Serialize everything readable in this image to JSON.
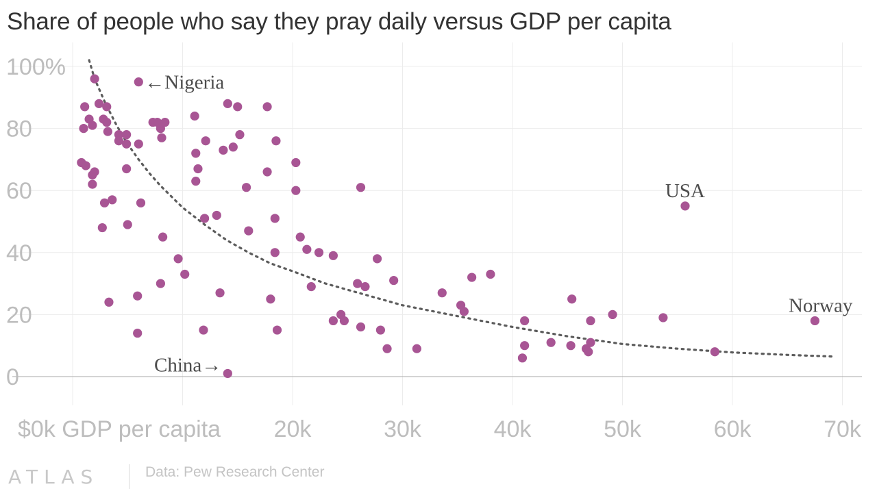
{
  "title": "Share of people who say they pray daily versus GDP per capita",
  "source": "Data: Pew Research Center",
  "brand": "ATLAS",
  "colors": {
    "point": "#a85594",
    "trend": "#5c5c5c",
    "grid": "#ececec",
    "axis_text": "#bdbdbd",
    "zero_line": "#aaaaaa",
    "annotation": "#4d4d4d"
  },
  "chart_data": {
    "type": "scatter",
    "xlim": [
      0,
      70000
    ],
    "ylim": [
      0,
      100
    ],
    "grid": true,
    "x_ticks": [
      {
        "value": 0,
        "label": "$0k GDP per capita"
      },
      {
        "value": 20000,
        "label": "20k"
      },
      {
        "value": 30000,
        "label": "30k"
      },
      {
        "value": 40000,
        "label": "40k"
      },
      {
        "value": 50000,
        "label": "50k"
      },
      {
        "value": 60000,
        "label": "60k"
      },
      {
        "value": 70000,
        "label": "70k"
      }
    ],
    "y_ticks": [
      {
        "value": 0,
        "label": "0"
      },
      {
        "value": 20,
        "label": "20"
      },
      {
        "value": 40,
        "label": "40"
      },
      {
        "value": 60,
        "label": "60"
      },
      {
        "value": 80,
        "label": "80"
      },
      {
        "value": 100,
        "label": "100%"
      }
    ],
    "points": [
      {
        "x": 800,
        "y": 69
      },
      {
        "x": 1200,
        "y": 68
      },
      {
        "x": 1000,
        "y": 80
      },
      {
        "x": 1100,
        "y": 87
      },
      {
        "x": 1500,
        "y": 83
      },
      {
        "x": 1800,
        "y": 81
      },
      {
        "x": 2000,
        "y": 96
      },
      {
        "x": 1800,
        "y": 65
      },
      {
        "x": 2000,
        "y": 66
      },
      {
        "x": 1800,
        "y": 62
      },
      {
        "x": 2400,
        "y": 88
      },
      {
        "x": 2800,
        "y": 83
      },
      {
        "x": 3100,
        "y": 87
      },
      {
        "x": 3100,
        "y": 82
      },
      {
        "x": 3200,
        "y": 79
      },
      {
        "x": 2900,
        "y": 56
      },
      {
        "x": 2700,
        "y": 48
      },
      {
        "x": 3600,
        "y": 57
      },
      {
        "x": 3300,
        "y": 24
      },
      {
        "x": 4200,
        "y": 78
      },
      {
        "x": 4200,
        "y": 76
      },
      {
        "x": 4900,
        "y": 78
      },
      {
        "x": 4900,
        "y": 75
      },
      {
        "x": 4900,
        "y": 67
      },
      {
        "x": 5000,
        "y": 49
      },
      {
        "x": 6000,
        "y": 95,
        "label": "←Nigeria"
      },
      {
        "x": 6000,
        "y": 75
      },
      {
        "x": 6200,
        "y": 56
      },
      {
        "x": 5900,
        "y": 26
      },
      {
        "x": 5900,
        "y": 14
      },
      {
        "x": 7300,
        "y": 82
      },
      {
        "x": 7700,
        "y": 82
      },
      {
        "x": 8000,
        "y": 80
      },
      {
        "x": 8400,
        "y": 82
      },
      {
        "x": 8100,
        "y": 77
      },
      {
        "x": 8200,
        "y": 45
      },
      {
        "x": 8000,
        "y": 30
      },
      {
        "x": 9600,
        "y": 38
      },
      {
        "x": 10200,
        "y": 33
      },
      {
        "x": 11100,
        "y": 84
      },
      {
        "x": 11200,
        "y": 72
      },
      {
        "x": 11400,
        "y": 67
      },
      {
        "x": 11200,
        "y": 63
      },
      {
        "x": 12100,
        "y": 76
      },
      {
        "x": 12000,
        "y": 51
      },
      {
        "x": 11900,
        "y": 15
      },
      {
        "x": 13100,
        "y": 52
      },
      {
        "x": 13400,
        "y": 27
      },
      {
        "x": 13700,
        "y": 73
      },
      {
        "x": 14100,
        "y": 88
      },
      {
        "x": 14600,
        "y": 74
      },
      {
        "x": 15000,
        "y": 87
      },
      {
        "x": 15200,
        "y": 78
      },
      {
        "x": 15800,
        "y": 61
      },
      {
        "x": 16000,
        "y": 47
      },
      {
        "x": 14100,
        "y": 1,
        "label": "China→"
      },
      {
        "x": 17700,
        "y": 87
      },
      {
        "x": 17700,
        "y": 66
      },
      {
        "x": 18000,
        "y": 25
      },
      {
        "x": 18500,
        "y": 76
      },
      {
        "x": 18400,
        "y": 51
      },
      {
        "x": 18400,
        "y": 40
      },
      {
        "x": 18600,
        "y": 15
      },
      {
        "x": 20300,
        "y": 69
      },
      {
        "x": 20300,
        "y": 60
      },
      {
        "x": 20700,
        "y": 45
      },
      {
        "x": 21300,
        "y": 41
      },
      {
        "x": 21700,
        "y": 29
      },
      {
        "x": 22400,
        "y": 40
      },
      {
        "x": 23700,
        "y": 39
      },
      {
        "x": 23700,
        "y": 18
      },
      {
        "x": 24400,
        "y": 20
      },
      {
        "x": 24700,
        "y": 18
      },
      {
        "x": 25900,
        "y": 30
      },
      {
        "x": 26200,
        "y": 16
      },
      {
        "x": 26200,
        "y": 61
      },
      {
        "x": 26600,
        "y": 29
      },
      {
        "x": 27700,
        "y": 38
      },
      {
        "x": 28000,
        "y": 15
      },
      {
        "x": 28600,
        "y": 9
      },
      {
        "x": 29200,
        "y": 31
      },
      {
        "x": 31300,
        "y": 9
      },
      {
        "x": 33600,
        "y": 27
      },
      {
        "x": 35300,
        "y": 23
      },
      {
        "x": 35600,
        "y": 21
      },
      {
        "x": 36300,
        "y": 32
      },
      {
        "x": 38000,
        "y": 33
      },
      {
        "x": 40900,
        "y": 6
      },
      {
        "x": 41100,
        "y": 18
      },
      {
        "x": 41100,
        "y": 10
      },
      {
        "x": 43500,
        "y": 11
      },
      {
        "x": 45300,
        "y": 10
      },
      {
        "x": 45400,
        "y": 25
      },
      {
        "x": 46700,
        "y": 9
      },
      {
        "x": 46900,
        "y": 8
      },
      {
        "x": 47100,
        "y": 18
      },
      {
        "x": 47100,
        "y": 11
      },
      {
        "x": 49100,
        "y": 20
      },
      {
        "x": 53700,
        "y": 19
      },
      {
        "x": 55700,
        "y": 55,
        "label": "USA"
      },
      {
        "x": 58400,
        "y": 8
      },
      {
        "x": 67500,
        "y": 18,
        "label": "Norway"
      }
    ],
    "trend": [
      {
        "x": 1500,
        "y": 102
      },
      {
        "x": 2000,
        "y": 96
      },
      {
        "x": 3000,
        "y": 88
      },
      {
        "x": 4000,
        "y": 81
      },
      {
        "x": 5000,
        "y": 75
      },
      {
        "x": 6000,
        "y": 70
      },
      {
        "x": 7000,
        "y": 65.5
      },
      {
        "x": 8000,
        "y": 61.5
      },
      {
        "x": 10000,
        "y": 54.5
      },
      {
        "x": 12000,
        "y": 49
      },
      {
        "x": 14000,
        "y": 44
      },
      {
        "x": 16000,
        "y": 40
      },
      {
        "x": 18000,
        "y": 36.5
      },
      {
        "x": 20000,
        "y": 34
      },
      {
        "x": 23000,
        "y": 30
      },
      {
        "x": 26000,
        "y": 27
      },
      {
        "x": 30000,
        "y": 23
      },
      {
        "x": 35000,
        "y": 19.5
      },
      {
        "x": 40000,
        "y": 16
      },
      {
        "x": 45000,
        "y": 13
      },
      {
        "x": 50000,
        "y": 10.5
      },
      {
        "x": 55000,
        "y": 9
      },
      {
        "x": 60000,
        "y": 7.8
      },
      {
        "x": 65000,
        "y": 7
      },
      {
        "x": 69000,
        "y": 6.5
      }
    ]
  }
}
